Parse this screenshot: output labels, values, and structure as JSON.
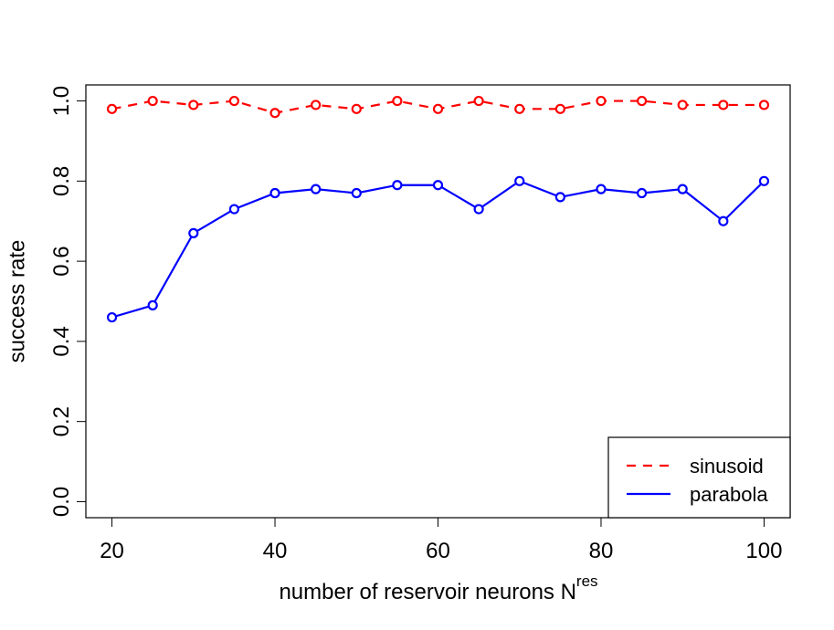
{
  "chart_data": {
    "type": "line",
    "xlabel": "number of reservoir neurons N",
    "xlabel_superscript": "res",
    "ylabel": "success rate",
    "x": [
      20,
      25,
      30,
      35,
      40,
      45,
      50,
      55,
      60,
      65,
      70,
      75,
      80,
      85,
      90,
      95,
      100
    ],
    "series": [
      {
        "name": "sinusoid",
        "color": "#ff0000",
        "dash": "dashed",
        "values": [
          0.98,
          1.0,
          0.99,
          1.0,
          0.97,
          0.99,
          0.98,
          1.0,
          0.98,
          1.0,
          0.98,
          0.98,
          1.0,
          1.0,
          0.99,
          0.99,
          0.99
        ]
      },
      {
        "name": "parabola",
        "color": "#0000ff",
        "dash": "solid",
        "values": [
          0.46,
          0.49,
          0.67,
          0.73,
          0.77,
          0.78,
          0.77,
          0.79,
          0.79,
          0.73,
          0.8,
          0.76,
          0.78,
          0.77,
          0.78,
          0.7,
          0.8
        ]
      }
    ],
    "xlim": [
      16.8,
      103.2
    ],
    "xticks": [
      20,
      40,
      60,
      80,
      100
    ],
    "ylim": [
      -0.04,
      1.04
    ],
    "yticks": [
      {
        "value": 0,
        "label": "0.0"
      },
      0.2,
      0.4,
      0.6,
      0.8,
      {
        "value": 1,
        "label": "1.0"
      }
    ],
    "legend": "bottom-right"
  }
}
